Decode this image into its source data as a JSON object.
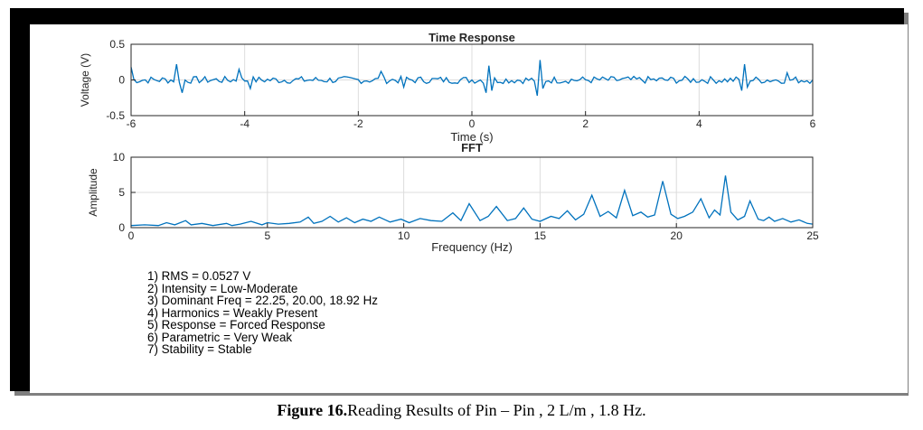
{
  "chart_data": [
    {
      "type": "line",
      "title": "Time Response",
      "xlabel": "Time (s)",
      "ylabel": "Voltage (V)",
      "xlim": [
        -6,
        6
      ],
      "ylim": [
        -0.5,
        0.5
      ],
      "xticks": [
        "-6",
        "-4",
        "-2",
        "0",
        "2",
        "4",
        "6"
      ],
      "yticks": [
        "0.5",
        "0",
        "-0.5"
      ],
      "grid": true,
      "color": "#0072bd",
      "series_description": "noisy signal around 0, baseline amplitude about ±0.05 V",
      "x": [
        -6.0,
        -5.2,
        -5.1,
        -4.1,
        -3.9,
        -1.6,
        -1.2,
        0.25,
        0.3,
        0.35,
        1.15,
        1.2,
        1.25,
        4.75,
        4.8,
        4.85,
        5.55,
        6.0
      ],
      "y": [
        0.18,
        0.22,
        -0.18,
        0.15,
        -0.12,
        0.12,
        -0.1,
        -0.18,
        0.2,
        -0.15,
        -0.22,
        0.28,
        -0.12,
        -0.15,
        0.22,
        -0.1,
        0.1,
        0.0
      ]
    },
    {
      "type": "line",
      "title": "FFT",
      "xlabel": "Frequency (Hz)",
      "ylabel": "Amplitude",
      "xlim": [
        0,
        25
      ],
      "ylim": [
        0,
        10
      ],
      "xticks": [
        "0",
        "5",
        "10",
        "15",
        "20",
        "25"
      ],
      "yticks": [
        "10",
        "5",
        "0"
      ],
      "grid": true,
      "color": "#0072bd",
      "x": [
        0,
        0.5,
        1.0,
        1.3,
        1.6,
        2.0,
        2.2,
        2.6,
        3.0,
        3.5,
        3.7,
        4.0,
        4.4,
        4.8,
        5.0,
        5.4,
        5.8,
        6.2,
        6.5,
        6.7,
        7.0,
        7.3,
        7.6,
        7.9,
        8.2,
        8.5,
        8.8,
        9.1,
        9.5,
        9.9,
        10.2,
        10.6,
        11.0,
        11.4,
        11.8,
        12.1,
        12.4,
        12.8,
        13.1,
        13.4,
        13.8,
        14.1,
        14.4,
        14.7,
        15.0,
        15.4,
        15.7,
        16.0,
        16.3,
        16.6,
        16.9,
        17.2,
        17.5,
        17.8,
        18.1,
        18.4,
        18.7,
        18.95,
        19.2,
        19.5,
        19.8,
        20.05,
        20.3,
        20.6,
        20.9,
        21.2,
        21.4,
        21.6,
        21.8,
        22.0,
        22.25,
        22.5,
        22.7,
        23.0,
        23.2,
        23.4,
        23.6,
        23.9,
        24.2,
        24.5,
        24.8,
        25.0
      ],
      "y": [
        0.3,
        0.4,
        0.3,
        0.7,
        0.4,
        1.0,
        0.4,
        0.6,
        0.3,
        0.6,
        0.3,
        0.5,
        0.9,
        0.4,
        0.7,
        0.5,
        0.6,
        0.8,
        1.5,
        0.6,
        0.9,
        1.6,
        0.8,
        1.4,
        0.7,
        1.2,
        0.9,
        1.5,
        0.8,
        1.2,
        0.7,
        1.3,
        1.0,
        0.9,
        2.1,
        1.0,
        3.4,
        1.0,
        1.6,
        3.0,
        1.0,
        1.3,
        2.8,
        1.2,
        0.9,
        1.6,
        1.3,
        2.4,
        1.1,
        1.9,
        4.6,
        1.6,
        2.3,
        1.4,
        5.3,
        1.7,
        2.2,
        1.5,
        1.8,
        6.6,
        1.9,
        1.3,
        1.6,
        2.2,
        4.1,
        1.4,
        2.5,
        1.8,
        7.4,
        2.2,
        1.1,
        1.6,
        3.8,
        1.2,
        1.0,
        1.5,
        0.9,
        1.3,
        0.8,
        1.1,
        0.6,
        0.5
      ]
    }
  ],
  "results": [
    "1) RMS = 0.0527 V",
    "2) Intensity = Low-Moderate",
    "3) Dominant Freq = 22.25, 20.00, 18.92 Hz",
    "4) Harmonics = Weakly Present",
    "5) Response = Forced Response",
    "6) Parametric = Very Weak",
    "7) Stability = Stable"
  ],
  "caption": {
    "label": "Figure  16.",
    "text": "Reading Results of Pin – Pin , 2 L/m , 1.8 Hz."
  }
}
